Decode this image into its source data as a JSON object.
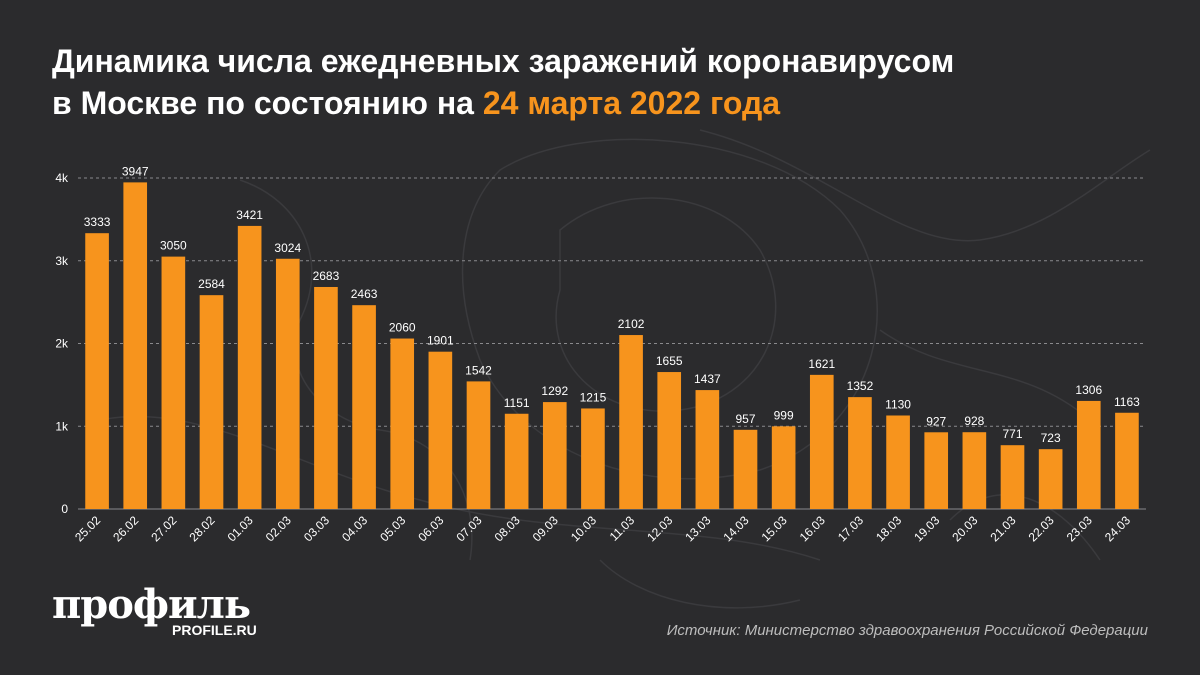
{
  "title": {
    "line1": "Динамика числа ежедневных заражений коронавирусом",
    "line2_prefix": "в Москве по состоянию на ",
    "line2_accent": "24 марта 2022 года"
  },
  "brand": {
    "logo": "профиль",
    "site": "PROFILE.RU"
  },
  "source": "Источник: Министерство здравоохранения Российской Федерации",
  "colors": {
    "background": "#2b2b2d",
    "bar": "#f7941d",
    "accent": "#f7941d",
    "text": "#ffffff"
  },
  "chart_data": {
    "type": "bar",
    "categories": [
      "25.02",
      "26.02",
      "27.02",
      "28.02",
      "01.03",
      "02.03",
      "03.03",
      "04.03",
      "05.03",
      "06.03",
      "07.03",
      "08.03",
      "09.03",
      "10.03",
      "11.03",
      "12.03",
      "13.03",
      "14.03",
      "15.03",
      "16.03",
      "17.03",
      "18.03",
      "19.03",
      "20.03",
      "21.03",
      "22.03",
      "23.03",
      "24.03"
    ],
    "values": [
      3333,
      3947,
      3050,
      2584,
      3421,
      3024,
      2683,
      2463,
      2060,
      1901,
      1542,
      1151,
      1292,
      1215,
      2102,
      1655,
      1437,
      957,
      999,
      1621,
      1352,
      1130,
      927,
      928,
      771,
      723,
      1306,
      1163
    ],
    "y_ticks": [
      0,
      1000,
      2000,
      3000,
      4000
    ],
    "y_tick_labels": [
      "0",
      "1k",
      "2k",
      "3k",
      "4k"
    ],
    "ylim": [
      0,
      4000
    ],
    "grid": "horizontal dashed",
    "data_labels": true
  }
}
